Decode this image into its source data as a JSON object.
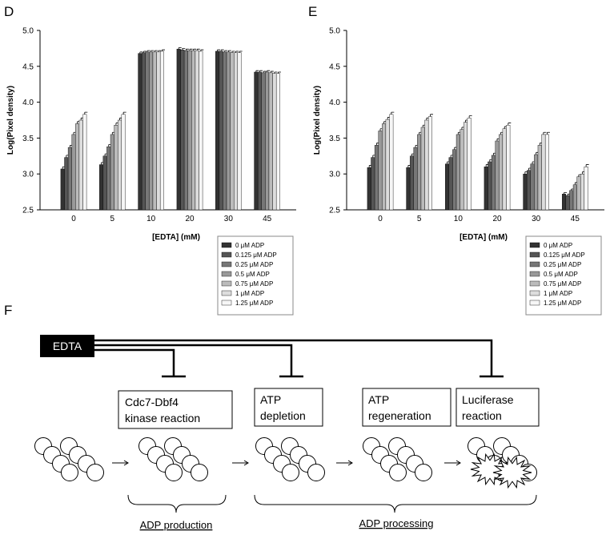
{
  "chart_data": [
    {
      "type": "bar",
      "panel": "D",
      "ylabel": "Log(Pixel density)",
      "xlabel": "[EDTA] (mM)",
      "categories": [
        "0",
        "5",
        "10",
        "20",
        "30",
        "45"
      ],
      "ylim": [
        2.5,
        5.0
      ],
      "yticks": [
        2.5,
        {
          "value": 3,
          "label": "3.0"
        },
        3.5,
        {
          "value": 4,
          "label": "4.0"
        },
        4.5,
        {
          "value": 5,
          "label": "5.0"
        }
      ],
      "legend": "below-right",
      "series": [
        {
          "name": "0 μM ADP",
          "color": "#333333",
          "values": [
            3.07,
            3.13,
            4.68,
            4.74,
            4.71,
            4.42
          ],
          "errors": [
            0.03,
            0.03,
            0.02,
            0.02,
            0.02,
            0.02
          ]
        },
        {
          "name": "0.125 μM ADP",
          "color": "#555555",
          "values": [
            3.23,
            3.25,
            4.69,
            4.73,
            4.71,
            4.42
          ],
          "errors": [
            0.03,
            0.03,
            0.02,
            0.02,
            0.02,
            0.02
          ]
        },
        {
          "name": "0.25 μM ADP",
          "color": "#777777",
          "values": [
            3.37,
            3.38,
            4.7,
            4.72,
            4.7,
            4.41
          ],
          "errors": [
            0.03,
            0.03,
            0.02,
            0.02,
            0.02,
            0.02
          ]
        },
        {
          "name": "0.5 μM ADP",
          "color": "#999999",
          "values": [
            3.55,
            3.55,
            4.7,
            4.72,
            4.7,
            4.42
          ],
          "errors": [
            0.03,
            0.03,
            0.02,
            0.02,
            0.02,
            0.02
          ]
        },
        {
          "name": "0.75 μM ADP",
          "color": "#bbbbbb",
          "values": [
            3.7,
            3.68,
            4.7,
            4.72,
            4.69,
            4.41
          ],
          "errors": [
            0.03,
            0.03,
            0.02,
            0.02,
            0.02,
            0.02
          ]
        },
        {
          "name": "1 μM ADP",
          "color": "#dddddd",
          "values": [
            3.75,
            3.75,
            4.7,
            4.72,
            4.69,
            4.4
          ],
          "errors": [
            0.03,
            0.03,
            0.02,
            0.02,
            0.02,
            0.02
          ]
        },
        {
          "name": "1.25 μM ADP",
          "color": "#f6f6f6",
          "values": [
            3.83,
            3.83,
            4.71,
            4.71,
            4.69,
            4.4
          ],
          "errors": [
            0.03,
            0.03,
            0.02,
            0.02,
            0.02,
            0.02
          ]
        }
      ]
    },
    {
      "type": "bar",
      "panel": "E",
      "ylabel": "Log(Pixel density)",
      "xlabel": "[EDTA] (mM)",
      "categories": [
        "0",
        "5",
        "10",
        "20",
        "30",
        "45"
      ],
      "ylim": [
        2.5,
        5.0
      ],
      "yticks": [
        2.5,
        {
          "value": 3,
          "label": "3.0"
        },
        3.5,
        {
          "value": 4,
          "label": "4.0"
        },
        4.5,
        {
          "value": 5,
          "label": "5.0"
        }
      ],
      "legend": "below-right",
      "series": [
        {
          "name": "0 μM ADP",
          "color": "#333333",
          "values": [
            3.09,
            3.09,
            3.14,
            3.1,
            3.0,
            2.72
          ],
          "errors": [
            0.03,
            0.03,
            0.03,
            0.03,
            0.03,
            0.02
          ]
        },
        {
          "name": "0.125 μM ADP",
          "color": "#555555",
          "values": [
            3.23,
            3.25,
            3.23,
            3.17,
            3.05,
            2.7
          ],
          "errors": [
            0.03,
            0.03,
            0.03,
            0.03,
            0.03,
            0.02
          ]
        },
        {
          "name": "0.25 μM ADP",
          "color": "#777777",
          "values": [
            3.4,
            3.37,
            3.34,
            3.26,
            3.14,
            2.77
          ],
          "errors": [
            0.03,
            0.03,
            0.03,
            0.03,
            0.03,
            0.02
          ]
        },
        {
          "name": "0.5 μM ADP",
          "color": "#999999",
          "values": [
            3.6,
            3.55,
            3.55,
            3.46,
            3.27,
            2.85
          ],
          "errors": [
            0.03,
            0.03,
            0.03,
            0.03,
            0.03,
            0.03
          ]
        },
        {
          "name": "0.75 μM ADP",
          "color": "#bbbbbb",
          "values": [
            3.7,
            3.65,
            3.62,
            3.55,
            3.4,
            2.96
          ],
          "errors": [
            0.03,
            0.03,
            0.03,
            0.03,
            0.03,
            0.03
          ]
        },
        {
          "name": "1 μM ADP",
          "color": "#dddddd",
          "values": [
            3.76,
            3.75,
            3.72,
            3.63,
            3.55,
            3.0
          ],
          "errors": [
            0.03,
            0.03,
            0.03,
            0.03,
            0.03,
            0.03
          ]
        },
        {
          "name": "1.25 μM ADP",
          "color": "#f6f6f6",
          "values": [
            3.83,
            3.8,
            3.78,
            3.68,
            3.55,
            3.1
          ],
          "errors": [
            0.03,
            0.03,
            0.03,
            0.03,
            0.03,
            0.03
          ]
        }
      ]
    }
  ],
  "diagram": {
    "panel": "F",
    "inhibitor": "EDTA",
    "steps": [
      {
        "lines": [
          "Cdc7-Dbf4",
          "kinase reaction"
        ]
      },
      {
        "lines": [
          "ATP",
          "depletion"
        ]
      },
      {
        "lines": [
          "ATP",
          "regeneration"
        ]
      },
      {
        "lines": [
          "Luciferase",
          "reaction"
        ]
      }
    ],
    "phases": [
      "ADP production",
      "ADP processing"
    ]
  }
}
